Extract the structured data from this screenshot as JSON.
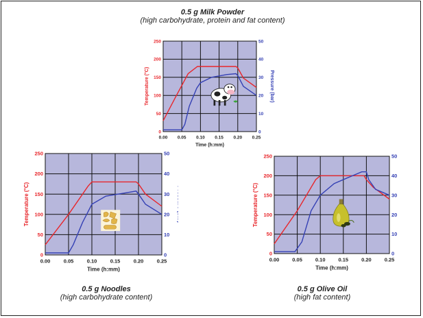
{
  "charts": [
    {
      "title": "0.5 g  Milk Powder",
      "subtitle": "(high carbohydrate, protein and fat content)",
      "icon": "cow-icon"
    },
    {
      "title": "0.5 g  Noodles",
      "subtitle": "(high carbohydrate content)",
      "icon": "pasta-icon"
    },
    {
      "title": "0.5 g  Olive Oil",
      "subtitle": "(high fat content)",
      "icon": "olive-oil-bottle-icon"
    }
  ],
  "colors": {
    "temperature": "#e8262b",
    "pressure": "#3440b4",
    "plot_bg": "#b7b7dc",
    "grid": "#111111"
  },
  "chart_data": [
    {
      "type": "line",
      "xlabel": "Time (h:mm)",
      "ylabel_left": "Temperature (°C)",
      "ylabel_right": "Pressure (bar)",
      "xlim": [
        0,
        0.25
      ],
      "ylim_left": [
        0,
        250
      ],
      "ylim_right": [
        0,
        50
      ],
      "x_ticks": [
        "0.00",
        "0.05",
        "0.10",
        "0.15",
        "0.20",
        "0.25"
      ],
      "y_ticks_left": [
        "0",
        "50",
        "100",
        "150",
        "200",
        "250"
      ],
      "y_ticks_right": [
        "0",
        "10",
        "20",
        "30",
        "40",
        "50"
      ],
      "grid": true,
      "series": [
        {
          "axis": "left",
          "color": "#e8262b",
          "points": [
            [
              0,
              30
            ],
            [
              0.033,
              95
            ],
            [
              0.067,
              160
            ],
            [
              0.092,
              180
            ],
            [
              0.11,
              180
            ],
            [
              0.195,
              180
            ],
            [
              0.2,
              176
            ],
            [
              0.215,
              148
            ],
            [
              0.25,
              122
            ]
          ]
        },
        {
          "axis": "right",
          "color": "#3440b4",
          "points": [
            [
              0,
              1
            ],
            [
              0.05,
              1
            ],
            [
              0.058,
              4
            ],
            [
              0.07,
              14
            ],
            [
              0.09,
              24
            ],
            [
              0.1,
              27
            ],
            [
              0.13,
              30
            ],
            [
              0.17,
              31.5
            ],
            [
              0.195,
              32
            ],
            [
              0.2,
              31
            ],
            [
              0.215,
              25
            ],
            [
              0.25,
              20
            ]
          ]
        }
      ]
    },
    {
      "type": "line",
      "xlabel": "Time (h:mm)",
      "ylabel_left": "Temperature (°C)",
      "ylabel_right": "Pressure (bar)",
      "xlim": [
        0,
        0.25
      ],
      "ylim_left": [
        0,
        250
      ],
      "ylim_right": [
        0,
        50
      ],
      "x_ticks": [
        "0.00",
        "0.05",
        "0.10",
        "0.15",
        "0.20",
        "0.25"
      ],
      "y_ticks_left": [
        "0",
        "50",
        "100",
        "150",
        "200",
        "250"
      ],
      "y_ticks_right": [
        "0",
        "10",
        "20",
        "30",
        "40",
        "50"
      ],
      "grid": true,
      "series": [
        {
          "axis": "left",
          "color": "#e8262b",
          "points": [
            [
              0,
              25
            ],
            [
              0.05,
              100
            ],
            [
              0.092,
              170
            ],
            [
              0.1,
              180
            ],
            [
              0.195,
              180
            ],
            [
              0.2,
              175
            ],
            [
              0.215,
              150
            ],
            [
              0.25,
              120
            ]
          ]
        },
        {
          "axis": "right",
          "color": "#3440b4",
          "points": [
            [
              0,
              1
            ],
            [
              0.05,
              1
            ],
            [
              0.06,
              5
            ],
            [
              0.08,
              16
            ],
            [
              0.1,
              25
            ],
            [
              0.13,
              29
            ],
            [
              0.17,
              30.5
            ],
            [
              0.195,
              31.5
            ],
            [
              0.2,
              30
            ],
            [
              0.215,
              25
            ],
            [
              0.25,
              20
            ]
          ]
        }
      ]
    },
    {
      "type": "line",
      "xlabel": "Time (h:mm)",
      "ylabel_left": "Temperature (°C)",
      "ylabel_right": "Pressure (bar)",
      "xlim": [
        0,
        0.25
      ],
      "ylim_left": [
        0,
        250
      ],
      "ylim_right": [
        0,
        50
      ],
      "x_ticks": [
        "0.00",
        "0.05",
        "0.10",
        "0.15",
        "0.20",
        "0.25"
      ],
      "y_ticks_left": [
        "0",
        "50",
        "100",
        "150",
        "200",
        "250"
      ],
      "y_ticks_right": [
        "0",
        "10",
        "20",
        "30",
        "40",
        "50"
      ],
      "grid": true,
      "series": [
        {
          "axis": "left",
          "color": "#e8262b",
          "points": [
            [
              0,
              25
            ],
            [
              0.05,
              110
            ],
            [
              0.09,
              190
            ],
            [
              0.1,
              200
            ],
            [
              0.195,
              200
            ],
            [
              0.2,
              190
            ],
            [
              0.215,
              170
            ],
            [
              0.25,
              140
            ]
          ]
        },
        {
          "axis": "right",
          "color": "#3440b4",
          "points": [
            [
              0,
              1
            ],
            [
              0.045,
              1
            ],
            [
              0.06,
              6
            ],
            [
              0.08,
              22
            ],
            [
              0.1,
              30
            ],
            [
              0.13,
              36
            ],
            [
              0.16,
              39
            ],
            [
              0.19,
              42
            ],
            [
              0.2,
              42
            ],
            [
              0.205,
              38
            ],
            [
              0.22,
              33
            ],
            [
              0.25,
              30
            ]
          ]
        }
      ]
    }
  ]
}
